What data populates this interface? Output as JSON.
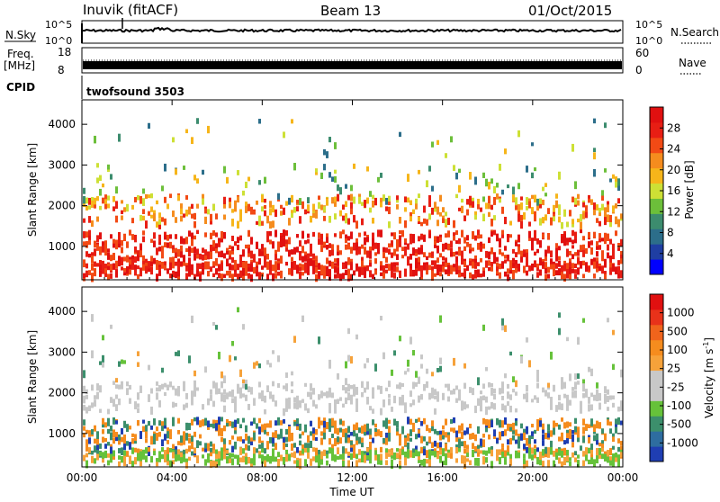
{
  "header": {
    "station": "Inuvik (fitACF)",
    "beam": "Beam 13",
    "date": "01/Oct/2015"
  },
  "top_panels": {
    "nsky_label": "N.Sky",
    "nsky_ticks": [
      "10^5",
      "10^0"
    ],
    "nsearch_label": "N.Search",
    "nsearch_ticks": [
      "10^5",
      "10^0"
    ],
    "freq_label": "Freq.",
    "freq_unit": "[MHz]",
    "freq_ticks": [
      "18",
      "8"
    ],
    "nave_label": "Nave",
    "nave_ticks": [
      "60",
      "0"
    ],
    "cpid_label": "CPID",
    "cpid_value": "twofsound 3503"
  },
  "chart_data": [
    {
      "type": "heatmap",
      "name": "power",
      "ylabel": "Slant Range [km]",
      "ylim": [
        180,
        4600
      ],
      "yticks": [
        "4000",
        "3000",
        "2000",
        "1000"
      ],
      "xlabel": "Time UT",
      "xticks": [
        "00:00",
        "04:00",
        "08:00",
        "12:00",
        "16:00",
        "20:00",
        "00:00"
      ],
      "colorbar": {
        "label": "Power [dB]",
        "ticks": [
          "28",
          "24",
          "20",
          "16",
          "12",
          "8",
          "4"
        ],
        "colors": [
          "#0000ff",
          "#1f3ea3",
          "#2c6e8a",
          "#3c8c6e",
          "#6cbf3a",
          "#cde035",
          "#f6b51a",
          "#f58c1e",
          "#f24a15",
          "#e81e14",
          "#e01010"
        ]
      }
    },
    {
      "type": "heatmap",
      "name": "velocity",
      "ylabel": "Slant Range [km]",
      "ylim": [
        180,
        4600
      ],
      "yticks": [
        "4000",
        "3000",
        "2000",
        "1000"
      ],
      "xlabel": "Time UT",
      "xticks": [
        "00:00",
        "04:00",
        "08:00",
        "12:00",
        "16:00",
        "20:00",
        "00:00"
      ],
      "colorbar": {
        "label": "Velocity [m s",
        "label_sup": "-1",
        "label_end": "]",
        "ticks": [
          "1000",
          "500",
          "100",
          "25",
          "-25",
          "-100",
          "-500",
          "-1000"
        ],
        "colors": [
          "#1f3eb3",
          "#2e6da0",
          "#3c8f6c",
          "#66c23a",
          "#c8c8c8",
          "#c8c8c8",
          "#f6a23a",
          "#f58c1e",
          "#f0641c",
          "#e8321a",
          "#e01010"
        ]
      }
    }
  ]
}
